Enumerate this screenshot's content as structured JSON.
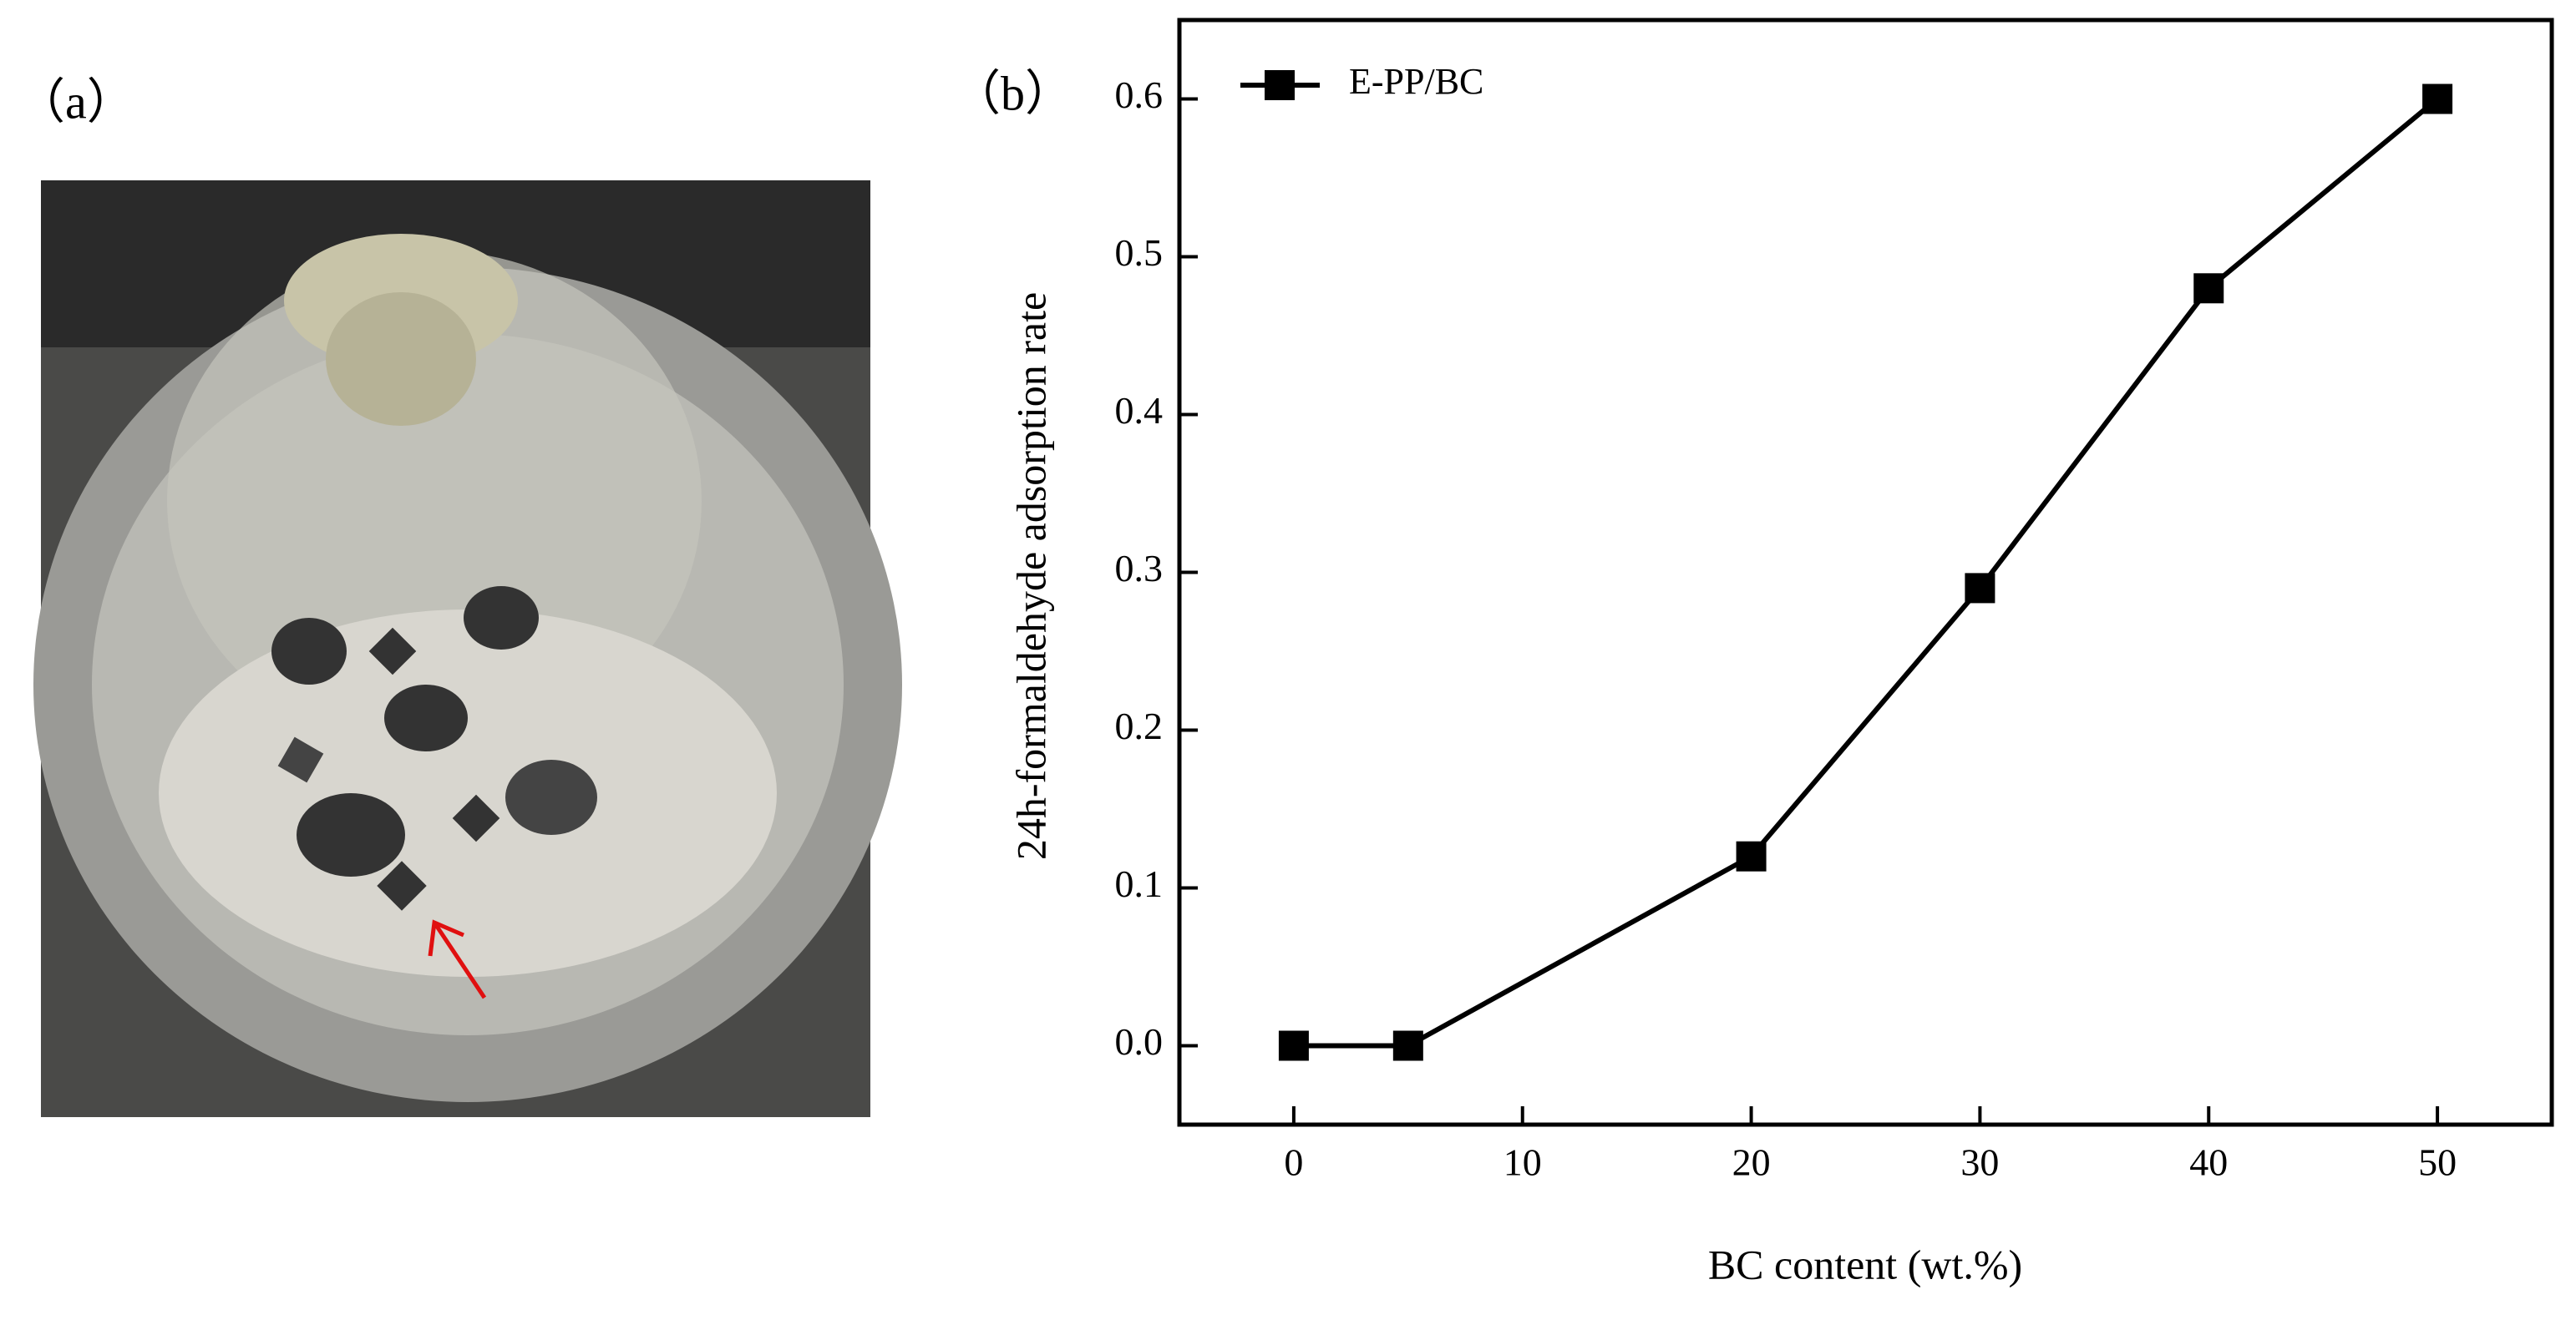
{
  "panel_a": {
    "label": "（a）"
  },
  "chart_data": {
    "type": "line",
    "panel_label": "（b）",
    "x_label": "BC content (wt.%)",
    "y_label": "24h-formaldehyde adsorption rate",
    "x": [
      0,
      5,
      20,
      30,
      40,
      50
    ],
    "series": [
      {
        "name": "E-PP/BC",
        "color": "#000000",
        "values": [
          0,
          0,
          0.12,
          0.29,
          0.48,
          0.6
        ]
      }
    ],
    "xlim": [
      -5,
      55
    ],
    "xticks": [
      0,
      10,
      20,
      30,
      40,
      50
    ],
    "ylim": [
      -0.05,
      0.65
    ],
    "yticks": [
      {
        "value": 0,
        "label": "0.0"
      },
      0.1,
      0.2,
      0.3,
      0.4,
      0.5,
      0.6
    ],
    "legend": "upper-left"
  }
}
